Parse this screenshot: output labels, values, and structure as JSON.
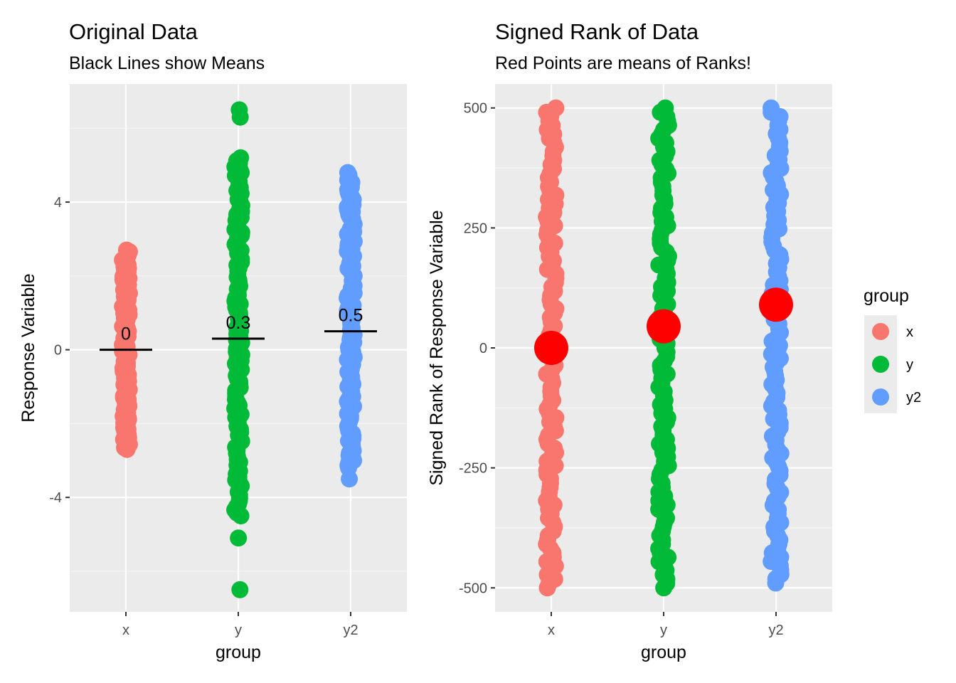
{
  "chart_data": [
    {
      "type": "scatter",
      "title": "Original Data",
      "subtitle": "Black Lines show Means",
      "xlabel": "group",
      "ylabel": "Response Variable",
      "categories": [
        "x",
        "y",
        "y2"
      ],
      "ylim": [
        -7.1,
        7.2
      ],
      "yticks": [
        -4,
        0,
        4
      ],
      "grid": true,
      "series": [
        {
          "name": "x",
          "color": "#F8766D",
          "min": -2.7,
          "max": 2.7,
          "mean": 0,
          "mean_label": "0",
          "outliers": []
        },
        {
          "name": "y",
          "color": "#00BA38",
          "min": -4.5,
          "max": 5.2,
          "mean": 0.3,
          "mean_label": "0.3",
          "outliers": [
            6.5,
            6.3,
            -5.1,
            -6.5
          ]
        },
        {
          "name": "y2",
          "color": "#619CFF",
          "min": -3.2,
          "max": 4.8,
          "mean": 0.5,
          "mean_label": "0.5",
          "outliers": [
            -3.5
          ]
        }
      ]
    },
    {
      "type": "scatter",
      "title": "Signed Rank of Data",
      "subtitle": "Red Points are means of Ranks!",
      "xlabel": "group",
      "ylabel": "Signed Rank of Response Variable",
      "categories": [
        "x",
        "y",
        "y2"
      ],
      "ylim": [
        -550,
        550
      ],
      "yticks": [
        -500,
        -250,
        0,
        250,
        500
      ],
      "grid": true,
      "mean_point_color": "#FF0000",
      "series": [
        {
          "name": "x",
          "color": "#F8766D",
          "min": -500,
          "max": 500,
          "mean_rank": 0
        },
        {
          "name": "y",
          "color": "#00BA38",
          "min": -500,
          "max": 500,
          "mean_rank": 45
        },
        {
          "name": "y2",
          "color": "#619CFF",
          "min": -490,
          "max": 500,
          "mean_rank": 90
        }
      ]
    }
  ],
  "legend": {
    "title": "group",
    "placement": "right",
    "items": [
      {
        "label": "x",
        "color": "#F8766D"
      },
      {
        "label": "y",
        "color": "#00BA38"
      },
      {
        "label": "y2",
        "color": "#619CFF"
      }
    ]
  }
}
